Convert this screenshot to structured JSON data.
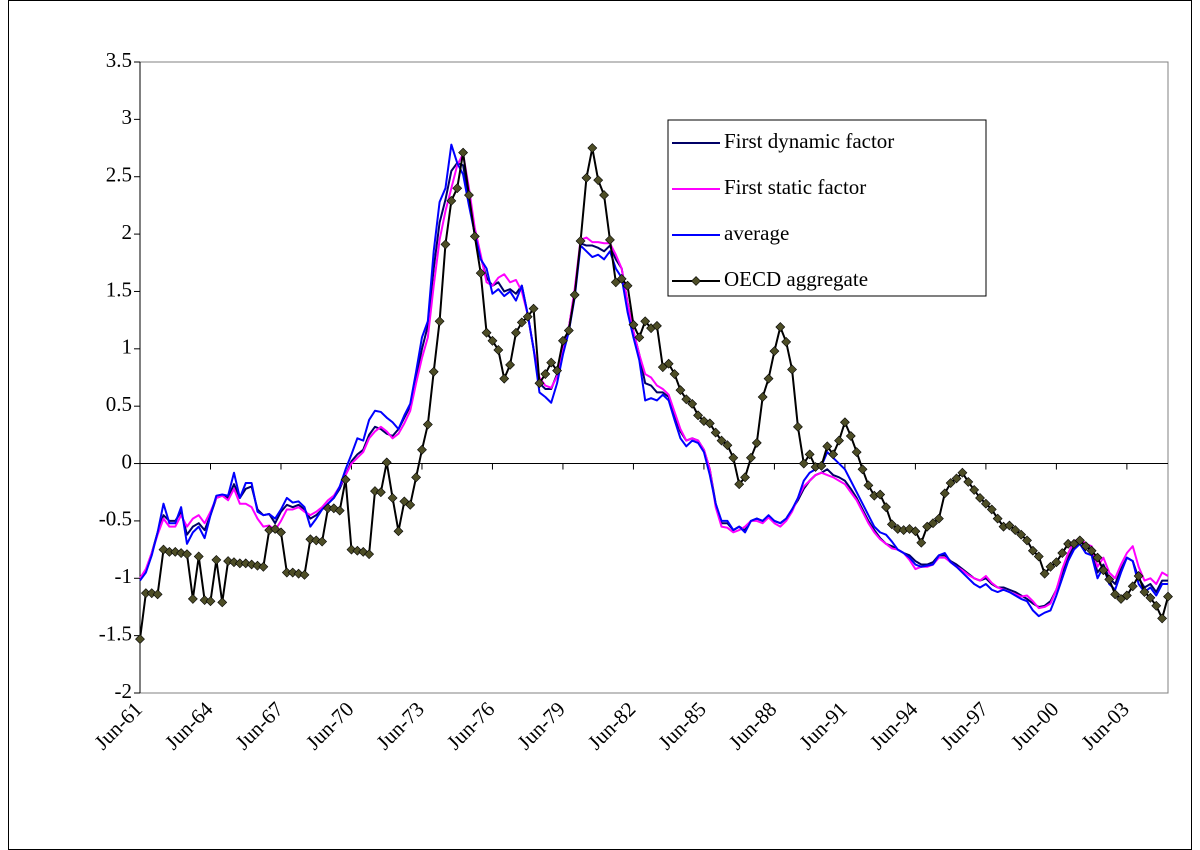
{
  "chart_data": {
    "type": "line",
    "categories": [
      "Jun-61",
      null,
      null,
      null,
      null,
      null,
      null,
      null,
      null,
      null,
      null,
      null,
      "Jun-64",
      null,
      null,
      null,
      null,
      null,
      null,
      null,
      null,
      null,
      null,
      null,
      "Jun-67",
      null,
      null,
      null,
      null,
      null,
      null,
      null,
      null,
      null,
      null,
      null,
      "Jun-70",
      null,
      null,
      null,
      null,
      null,
      null,
      null,
      null,
      null,
      null,
      null,
      "Jun-73",
      null,
      null,
      null,
      null,
      null,
      null,
      null,
      null,
      null,
      null,
      null,
      "Jun-76",
      null,
      null,
      null,
      null,
      null,
      null,
      null,
      null,
      null,
      null,
      null,
      "Jun-79",
      null,
      null,
      null,
      null,
      null,
      null,
      null,
      null,
      null,
      null,
      null,
      "Jun-82",
      null,
      null,
      null,
      null,
      null,
      null,
      null,
      null,
      null,
      null,
      null,
      "Jun-85",
      null,
      null,
      null,
      null,
      null,
      null,
      null,
      null,
      null,
      null,
      null,
      "Jun-88",
      null,
      null,
      null,
      null,
      null,
      null,
      null,
      null,
      null,
      null,
      null,
      "Jun-91",
      null,
      null,
      null,
      null,
      null,
      null,
      null,
      null,
      null,
      null,
      null,
      "Jun-94",
      null,
      null,
      null,
      null,
      null,
      null,
      null,
      null,
      null,
      null,
      null,
      "Jun-97",
      null,
      null,
      null,
      null,
      null,
      null,
      null,
      null,
      null,
      null,
      null,
      "Jun-00",
      null,
      null,
      null,
      null,
      null,
      null,
      null,
      null,
      null,
      null,
      null,
      "Jun-03",
      null,
      null,
      null,
      null,
      null,
      null,
      null
    ],
    "series": [
      {
        "name": "First dynamic factor",
        "color": "#000066",
        "values": [
          -1.0,
          -0.93,
          -0.78,
          -0.6,
          -0.45,
          -0.5,
          -0.5,
          -0.42,
          -0.62,
          -0.55,
          -0.52,
          -0.58,
          -0.45,
          -0.3,
          -0.28,
          -0.3,
          -0.18,
          -0.3,
          -0.22,
          -0.2,
          -0.4,
          -0.45,
          -0.44,
          -0.52,
          -0.42,
          -0.36,
          -0.38,
          -0.36,
          -0.4,
          -0.48,
          -0.45,
          -0.4,
          -0.35,
          -0.3,
          -0.22,
          -0.1,
          0.02,
          0.08,
          0.12,
          0.25,
          0.32,
          0.3,
          0.26,
          0.24,
          0.3,
          0.4,
          0.5,
          0.75,
          1.0,
          1.2,
          1.7,
          2.1,
          2.3,
          2.55,
          2.62,
          2.6,
          2.3,
          2.0,
          1.8,
          1.62,
          1.55,
          1.58,
          1.5,
          1.52,
          1.48,
          1.55,
          1.3,
          1.0,
          0.7,
          0.65,
          0.65,
          0.78,
          1.0,
          1.18,
          1.5,
          1.92,
          1.9,
          1.9,
          1.88,
          1.85,
          1.9,
          1.78,
          1.7,
          1.4,
          1.15,
          0.95,
          0.7,
          0.68,
          0.62,
          0.62,
          0.58,
          0.42,
          0.28,
          0.2,
          0.22,
          0.2,
          0.12,
          -0.05,
          -0.35,
          -0.52,
          -0.52,
          -0.58,
          -0.55,
          -0.58,
          -0.5,
          -0.48,
          -0.5,
          -0.46,
          -0.5,
          -0.52,
          -0.48,
          -0.4,
          -0.32,
          -0.22,
          -0.15,
          -0.1,
          -0.08,
          -0.05,
          -0.1,
          -0.12,
          -0.15,
          -0.22,
          -0.3,
          -0.4,
          -0.5,
          -0.58,
          -0.65,
          -0.7,
          -0.72,
          -0.75,
          -0.78,
          -0.8,
          -0.85,
          -0.88,
          -0.88,
          -0.86,
          -0.8,
          -0.8,
          -0.85,
          -0.88,
          -0.92,
          -0.96,
          -1.0,
          -1.02,
          -1.0,
          -1.05,
          -1.08,
          -1.08,
          -1.1,
          -1.12,
          -1.15,
          -1.18,
          -1.22,
          -1.25,
          -1.24,
          -1.2,
          -1.1,
          -0.95,
          -0.82,
          -0.72,
          -0.68,
          -0.72,
          -0.75,
          -0.95,
          -0.88,
          -1.0,
          -1.05,
          -0.92,
          -0.82,
          -0.85,
          -1.0,
          -1.08,
          -1.05,
          -1.12,
          -1.02,
          -1.02
        ]
      },
      {
        "name": "First static factor",
        "color": "#ff00ff",
        "values": [
          -1.0,
          -0.92,
          -0.78,
          -0.62,
          -0.48,
          -0.55,
          -0.55,
          -0.45,
          -0.55,
          -0.48,
          -0.45,
          -0.52,
          -0.42,
          -0.3,
          -0.28,
          -0.32,
          -0.22,
          -0.35,
          -0.35,
          -0.38,
          -0.48,
          -0.55,
          -0.54,
          -0.58,
          -0.5,
          -0.4,
          -0.4,
          -0.38,
          -0.42,
          -0.45,
          -0.42,
          -0.38,
          -0.32,
          -0.28,
          -0.2,
          -0.1,
          0.0,
          0.05,
          0.1,
          0.22,
          0.28,
          0.32,
          0.28,
          0.22,
          0.26,
          0.35,
          0.46,
          0.7,
          0.92,
          1.1,
          1.55,
          1.95,
          2.2,
          2.4,
          2.6,
          2.7,
          2.4,
          2.05,
          1.82,
          1.58,
          1.55,
          1.62,
          1.65,
          1.58,
          1.6,
          1.5,
          1.3,
          1.0,
          0.75,
          0.68,
          0.66,
          0.76,
          0.98,
          1.18,
          1.52,
          1.95,
          1.97,
          1.93,
          1.93,
          1.92,
          1.92,
          1.82,
          1.7,
          1.4,
          1.15,
          0.95,
          0.78,
          0.75,
          0.68,
          0.65,
          0.6,
          0.45,
          0.3,
          0.2,
          0.22,
          0.2,
          0.12,
          -0.05,
          -0.38,
          -0.55,
          -0.56,
          -0.6,
          -0.58,
          -0.55,
          -0.5,
          -0.5,
          -0.52,
          -0.47,
          -0.52,
          -0.55,
          -0.5,
          -0.42,
          -0.3,
          -0.2,
          -0.15,
          -0.1,
          -0.08,
          -0.1,
          -0.12,
          -0.15,
          -0.18,
          -0.25,
          -0.32,
          -0.42,
          -0.52,
          -0.6,
          -0.66,
          -0.7,
          -0.74,
          -0.75,
          -0.78,
          -0.84,
          -0.92,
          -0.9,
          -0.9,
          -0.88,
          -0.82,
          -0.82,
          -0.86,
          -0.9,
          -0.93,
          -0.97,
          -1.0,
          -1.02,
          -0.98,
          -1.04,
          -1.08,
          -1.1,
          -1.12,
          -1.14,
          -1.16,
          -1.15,
          -1.2,
          -1.26,
          -1.25,
          -1.22,
          -1.1,
          -0.92,
          -0.78,
          -0.68,
          -0.65,
          -0.7,
          -0.72,
          -0.9,
          -0.82,
          -0.95,
          -1.0,
          -0.88,
          -0.78,
          -0.72,
          -0.9,
          -1.02,
          -1.0,
          -1.05,
          -0.95,
          -0.98
        ]
      },
      {
        "name": "average",
        "color": "#0000ff",
        "values": [
          -1.02,
          -0.95,
          -0.8,
          -0.6,
          -0.35,
          -0.52,
          -0.52,
          -0.38,
          -0.7,
          -0.6,
          -0.55,
          -0.65,
          -0.45,
          -0.28,
          -0.27,
          -0.28,
          -0.08,
          -0.3,
          -0.17,
          -0.17,
          -0.42,
          -0.45,
          -0.44,
          -0.48,
          -0.4,
          -0.3,
          -0.34,
          -0.33,
          -0.38,
          -0.55,
          -0.48,
          -0.4,
          -0.35,
          -0.3,
          -0.2,
          -0.05,
          0.08,
          0.22,
          0.2,
          0.38,
          0.46,
          0.45,
          0.4,
          0.36,
          0.3,
          0.42,
          0.52,
          0.8,
          1.1,
          1.24,
          1.85,
          2.28,
          2.4,
          2.78,
          2.62,
          2.52,
          2.25,
          2.0,
          1.78,
          1.7,
          1.48,
          1.52,
          1.46,
          1.5,
          1.42,
          1.55,
          1.3,
          1.0,
          0.62,
          0.58,
          0.53,
          0.7,
          0.95,
          1.15,
          1.45,
          1.9,
          1.85,
          1.8,
          1.82,
          1.78,
          1.85,
          1.7,
          1.62,
          1.32,
          1.1,
          0.9,
          0.55,
          0.57,
          0.55,
          0.6,
          0.55,
          0.38,
          0.22,
          0.15,
          0.2,
          0.18,
          0.1,
          -0.1,
          -0.35,
          -0.5,
          -0.5,
          -0.58,
          -0.55,
          -0.6,
          -0.5,
          -0.48,
          -0.5,
          -0.45,
          -0.5,
          -0.52,
          -0.48,
          -0.4,
          -0.3,
          -0.15,
          -0.08,
          -0.05,
          -0.02,
          0.1,
          0.05,
          0.0,
          -0.05,
          -0.15,
          -0.25,
          -0.35,
          -0.45,
          -0.55,
          -0.6,
          -0.62,
          -0.68,
          -0.75,
          -0.78,
          -0.82,
          -0.88,
          -0.9,
          -0.89,
          -0.88,
          -0.8,
          -0.78,
          -0.86,
          -0.9,
          -0.95,
          -1.0,
          -1.05,
          -1.08,
          -1.05,
          -1.1,
          -1.12,
          -1.1,
          -1.12,
          -1.15,
          -1.18,
          -1.2,
          -1.28,
          -1.33,
          -1.3,
          -1.28,
          -1.15,
          -1.0,
          -0.85,
          -0.75,
          -0.7,
          -0.78,
          -0.8,
          -1.0,
          -0.9,
          -1.05,
          -1.1,
          -0.95,
          -0.82,
          -0.85,
          -1.05,
          -1.12,
          -1.08,
          -1.15,
          -1.05,
          -1.05
        ]
      },
      {
        "name": "OECD aggregate",
        "color": "#000000",
        "marker": "diamond",
        "marker_color": "#4d4d26",
        "values": [
          -1.53,
          -1.13,
          -1.13,
          -1.14,
          -0.75,
          -0.77,
          -0.77,
          -0.78,
          -0.79,
          -1.18,
          -0.81,
          -1.19,
          -1.2,
          -0.84,
          -1.21,
          -0.85,
          -0.86,
          -0.87,
          -0.87,
          -0.88,
          -0.89,
          -0.9,
          -0.58,
          -0.57,
          -0.6,
          -0.95,
          -0.95,
          -0.96,
          -0.97,
          -0.66,
          -0.67,
          -0.68,
          -0.39,
          -0.39,
          -0.41,
          -0.14,
          -0.75,
          -0.76,
          -0.77,
          -0.79,
          -0.24,
          -0.25,
          0.01,
          -0.3,
          -0.59,
          -0.33,
          -0.36,
          -0.12,
          0.12,
          0.34,
          0.8,
          1.24,
          1.91,
          2.29,
          2.4,
          2.71,
          2.34,
          1.98,
          1.66,
          1.14,
          1.07,
          0.99,
          0.74,
          0.86,
          1.14,
          1.23,
          1.28,
          1.35,
          0.7,
          0.78,
          0.88,
          0.81,
          1.07,
          1.16,
          1.47,
          1.94,
          2.49,
          2.75,
          2.47,
          2.34,
          1.95,
          1.58,
          1.61,
          1.55,
          1.21,
          1.1,
          1.24,
          1.18,
          1.2,
          0.84,
          0.87,
          0.78,
          0.64,
          0.56,
          0.52,
          0.42,
          0.37,
          0.35,
          0.27,
          0.2,
          0.16,
          0.05,
          -0.18,
          -0.12,
          0.05,
          0.18,
          0.58,
          0.74,
          0.98,
          1.19,
          1.06,
          0.82,
          0.32,
          0.0,
          0.08,
          -0.03,
          -0.02,
          0.15,
          0.08,
          0.2,
          0.36,
          0.24,
          0.1,
          -0.05,
          -0.19,
          -0.28,
          -0.27,
          -0.38,
          -0.53,
          -0.57,
          -0.58,
          -0.57,
          -0.59,
          -0.69,
          -0.55,
          -0.52,
          -0.48,
          -0.26,
          -0.17,
          -0.13,
          -0.08,
          -0.16,
          -0.23,
          -0.3,
          -0.35,
          -0.4,
          -0.48,
          -0.55,
          -0.54,
          -0.58,
          -0.62,
          -0.67,
          -0.76,
          -0.81,
          -0.96,
          -0.9,
          -0.86,
          -0.78,
          -0.7,
          -0.7,
          -0.67,
          -0.72,
          -0.76,
          -0.82,
          -0.93,
          -1.01,
          -1.14,
          -1.18,
          -1.15,
          -1.07,
          -0.98,
          -1.12,
          -1.17,
          -1.24,
          -1.35,
          -1.16
        ]
      }
    ],
    "ylim": [
      -2,
      3.5
    ],
    "yticks": [
      -2,
      -1.5,
      -1,
      -0.5,
      0,
      0.5,
      1,
      1.5,
      2,
      2.5,
      3,
      3.5
    ],
    "grid": false,
    "legend": "upper right"
  }
}
